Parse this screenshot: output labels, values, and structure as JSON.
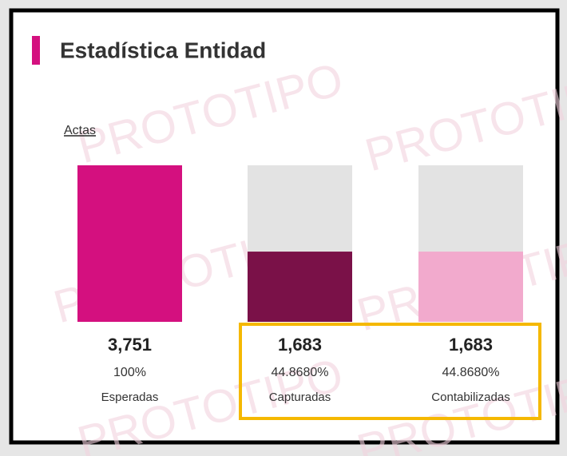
{
  "chart_data": {
    "type": "bar",
    "title": "Estadística Entidad",
    "subtitle": "Actas",
    "watermark": "PROTOTIPO",
    "categories": [
      "Esperadas",
      "Capturadas",
      "Contabilizadas"
    ],
    "values": [
      100,
      44.868,
      44.868
    ],
    "value_labels": [
      "100%",
      "44.8680%",
      "44.8680%"
    ],
    "counts": [
      {
        "value": 3751,
        "label": "3,751"
      },
      {
        "value": 1683,
        "label": "1,683"
      },
      {
        "value": 1683,
        "label": "1,683"
      }
    ],
    "colors": [
      "#d4107f",
      "#7a1148",
      "#f2aacd"
    ],
    "ylim": [
      0,
      100
    ]
  }
}
